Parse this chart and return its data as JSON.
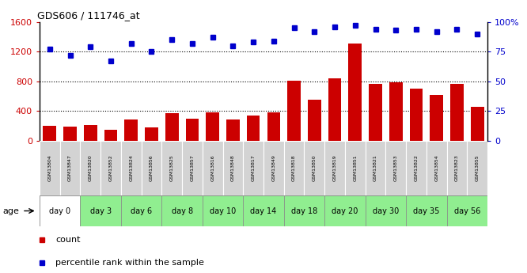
{
  "title": "GDS606 / 111746_at",
  "samples": [
    "GSM13804",
    "GSM13847",
    "GSM13820",
    "GSM13852",
    "GSM13824",
    "GSM13856",
    "GSM13825",
    "GSM13857",
    "GSM13816",
    "GSM13848",
    "GSM13817",
    "GSM13849",
    "GSM13818",
    "GSM13850",
    "GSM13819",
    "GSM13851",
    "GSM13821",
    "GSM13853",
    "GSM13822",
    "GSM13854",
    "GSM13823",
    "GSM13855"
  ],
  "counts": [
    200,
    185,
    215,
    145,
    285,
    175,
    365,
    295,
    385,
    285,
    340,
    385,
    810,
    550,
    835,
    1310,
    760,
    790,
    700,
    615,
    760,
    455
  ],
  "percentile": [
    77,
    72,
    79,
    67,
    82,
    75,
    85,
    82,
    87,
    80,
    83,
    84,
    95,
    92,
    96,
    97,
    94,
    93,
    94,
    92,
    94,
    90
  ],
  "age_groups": [
    {
      "label": "day 0",
      "start": 0,
      "end": 2
    },
    {
      "label": "day 3",
      "start": 2,
      "end": 4
    },
    {
      "label": "day 6",
      "start": 4,
      "end": 6
    },
    {
      "label": "day 8",
      "start": 6,
      "end": 8
    },
    {
      "label": "day 10",
      "start": 8,
      "end": 10
    },
    {
      "label": "day 14",
      "start": 10,
      "end": 12
    },
    {
      "label": "day 18",
      "start": 12,
      "end": 14
    },
    {
      "label": "day 20",
      "start": 14,
      "end": 16
    },
    {
      "label": "day 30",
      "start": 16,
      "end": 18
    },
    {
      "label": "day 35",
      "start": 18,
      "end": 20
    },
    {
      "label": "day 56",
      "start": 20,
      "end": 22
    }
  ],
  "age_row_colors": [
    "#ffffff",
    "#90ee90",
    "#90ee90",
    "#90ee90",
    "#90ee90",
    "#90ee90",
    "#90ee90",
    "#90ee90",
    "#90ee90",
    "#90ee90",
    "#90ee90"
  ],
  "bar_color": "#cc0000",
  "dot_color": "#0000cc",
  "left_ylim": [
    0,
    1600
  ],
  "left_yticks": [
    0,
    400,
    800,
    1200,
    1600
  ],
  "right_ytick_labels": [
    "0",
    "25",
    "50",
    "75",
    "100%"
  ],
  "right_yticks": [
    0,
    25,
    50,
    75,
    100
  ],
  "sample_bg": "#d0d0d0",
  "legend_count_label": "count",
  "legend_pct_label": "percentile rank within the sample",
  "age_label": "age"
}
